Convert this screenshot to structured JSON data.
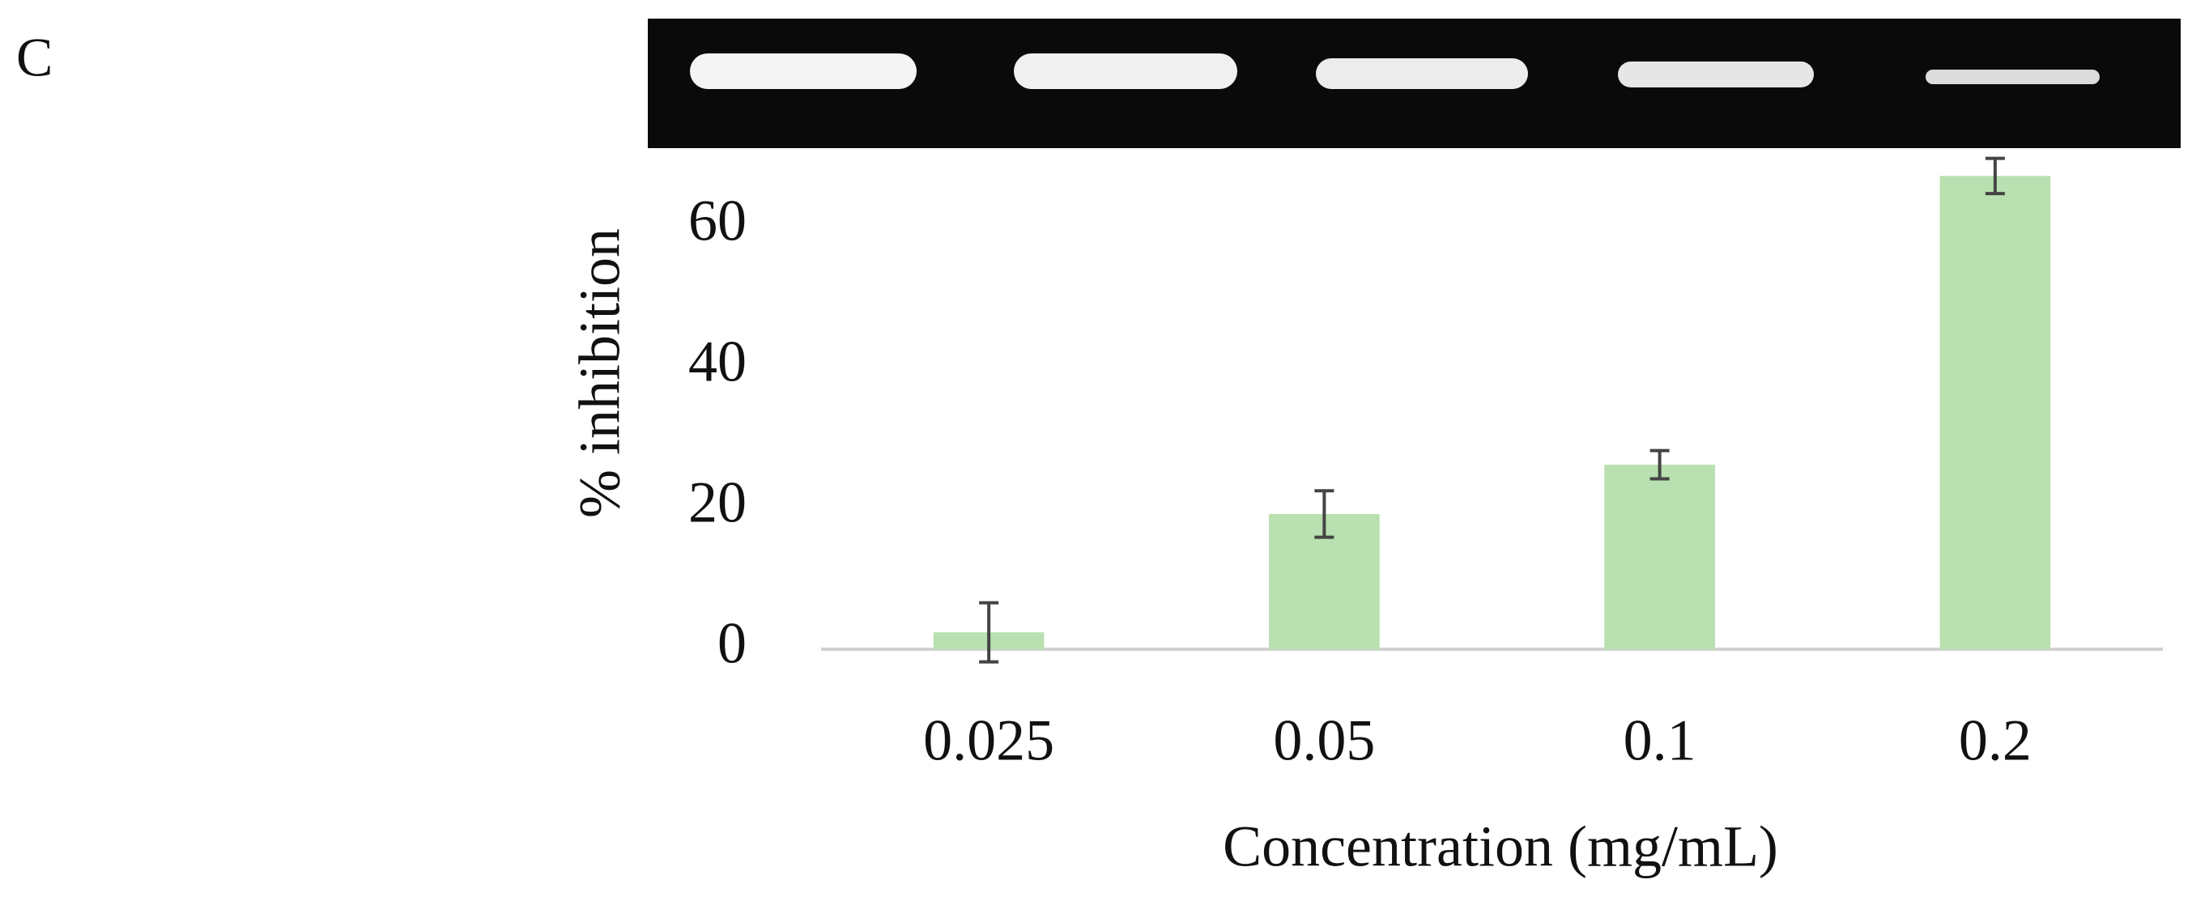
{
  "panel_label": "C",
  "chart_data": {
    "type": "bar",
    "x_label": "Concentration (mg/mL)",
    "y_label": "% inhibition",
    "categories": [
      "0.025",
      "0.05",
      "0.1",
      "0.2"
    ],
    "values": [
      2.4,
      19.2,
      26.2,
      67.2
    ],
    "errors": [
      4.2,
      3.3,
      2.0,
      2.5
    ],
    "color": "#b9e0b0",
    "ylim": [
      0,
      70
    ],
    "yticks": [
      0,
      20,
      40,
      60
    ],
    "grid": false
  }
}
